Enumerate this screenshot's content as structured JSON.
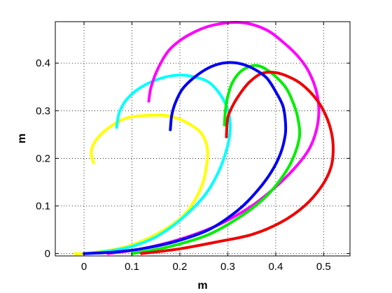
{
  "chart_data": {
    "type": "line",
    "title": "",
    "xlabel": "m",
    "ylabel": "m",
    "xlim": [
      -0.06,
      0.555
    ],
    "ylim": [
      -0.005,
      0.487
    ],
    "xticks": [
      0,
      0.1,
      0.2,
      0.3,
      0.4,
      0.5
    ],
    "xtick_labels": [
      "0",
      "0.1",
      "0.2",
      "0.3",
      "0.4",
      "0.5"
    ],
    "yticks": [
      0,
      0.1,
      0.2,
      0.3,
      0.4
    ],
    "ytick_labels": [
      "0",
      "0.1",
      "0.2",
      "0.3",
      "0.4"
    ],
    "grid": true,
    "legend": "none",
    "series": [
      {
        "color": "#ffff00",
        "x": [
          -0.02,
          0.0,
          0.04,
          0.09,
          0.14,
          0.19,
          0.22,
          0.245,
          0.255,
          0.258,
          0.252,
          0.24,
          0.22,
          0.2,
          0.17,
          0.13,
          0.09,
          0.06,
          0.035,
          0.02,
          0.015,
          0.02
        ],
        "y": [
          0.0,
          0.0,
          0.005,
          0.015,
          0.035,
          0.065,
          0.095,
          0.14,
          0.18,
          0.215,
          0.24,
          0.258,
          0.272,
          0.282,
          0.29,
          0.29,
          0.285,
          0.27,
          0.25,
          0.23,
          0.21,
          0.19
        ]
      },
      {
        "color": "#00ffff",
        "x": [
          0.0,
          0.05,
          0.1,
          0.15,
          0.2,
          0.25,
          0.28,
          0.298,
          0.305,
          0.303,
          0.295,
          0.28,
          0.26,
          0.235,
          0.2,
          0.16,
          0.12,
          0.09,
          0.075,
          0.07,
          0.068
        ],
        "y": [
          0.0,
          0.005,
          0.015,
          0.035,
          0.07,
          0.12,
          0.17,
          0.22,
          0.26,
          0.29,
          0.315,
          0.34,
          0.36,
          0.37,
          0.375,
          0.368,
          0.35,
          0.325,
          0.3,
          0.28,
          0.265
        ]
      },
      {
        "color": "#ff00ff",
        "x": [
          0.05,
          0.12,
          0.2,
          0.28,
          0.35,
          0.4,
          0.44,
          0.47,
          0.485,
          0.49,
          0.485,
          0.47,
          0.45,
          0.42,
          0.38,
          0.33,
          0.27,
          0.22,
          0.18,
          0.155,
          0.14,
          0.135
        ],
        "y": [
          0.0,
          0.01,
          0.03,
          0.06,
          0.1,
          0.14,
          0.18,
          0.22,
          0.26,
          0.3,
          0.34,
          0.38,
          0.41,
          0.44,
          0.47,
          0.485,
          0.48,
          0.46,
          0.43,
          0.39,
          0.35,
          0.32
        ]
      },
      {
        "color": "#00ee00",
        "x": [
          0.1,
          0.18,
          0.26,
          0.33,
          0.38,
          0.42,
          0.44,
          0.45,
          0.445,
          0.435,
          0.42,
          0.39,
          0.36,
          0.33,
          0.31,
          0.3,
          0.295,
          0.293
        ],
        "y": [
          0.0,
          0.015,
          0.04,
          0.08,
          0.12,
          0.17,
          0.21,
          0.25,
          0.29,
          0.32,
          0.35,
          0.38,
          0.395,
          0.385,
          0.36,
          0.33,
          0.3,
          0.27
        ]
      },
      {
        "color": "#ee0000",
        "x": [
          0.12,
          0.2,
          0.28,
          0.35,
          0.41,
          0.46,
          0.495,
          0.515,
          0.52,
          0.515,
          0.5,
          0.48,
          0.455,
          0.43,
          0.4,
          0.37,
          0.345,
          0.325,
          0.31,
          0.3,
          0.297
        ],
        "y": [
          0.0,
          0.01,
          0.025,
          0.04,
          0.065,
          0.1,
          0.14,
          0.18,
          0.22,
          0.26,
          0.3,
          0.33,
          0.355,
          0.37,
          0.38,
          0.378,
          0.36,
          0.335,
          0.31,
          0.285,
          0.245
        ]
      },
      {
        "color": "#0000ee",
        "x": [
          0.0,
          0.06,
          0.12,
          0.19,
          0.26,
          0.32,
          0.36,
          0.39,
          0.41,
          0.42,
          0.42,
          0.415,
          0.4,
          0.38,
          0.35,
          0.32,
          0.29,
          0.26,
          0.23,
          0.205,
          0.19,
          0.183,
          0.18
        ],
        "y": [
          0.0,
          0.003,
          0.01,
          0.025,
          0.05,
          0.09,
          0.13,
          0.17,
          0.21,
          0.25,
          0.28,
          0.31,
          0.34,
          0.37,
          0.39,
          0.4,
          0.4,
          0.39,
          0.37,
          0.345,
          0.315,
          0.29,
          0.26
        ]
      }
    ]
  }
}
